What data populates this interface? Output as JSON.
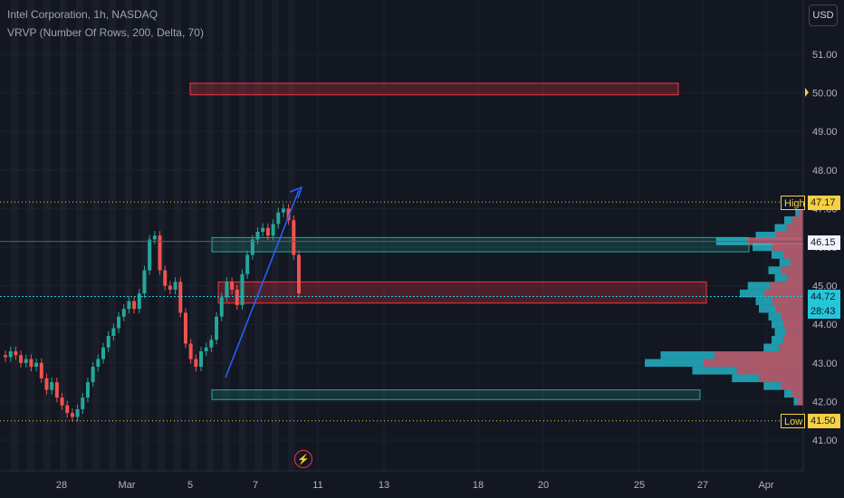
{
  "header": {
    "symbol_line": "Intel Corporation, 1h, NASDAQ",
    "indicator_line": "VRVP (Number Of Rows, 200, Delta, 70)"
  },
  "toolbar": {
    "currency_label": "USD"
  },
  "colors": {
    "background": "#131722",
    "up": "#26a69a",
    "down": "#ef5350",
    "zone_red": "#f23645",
    "zone_green": "#22ab94",
    "trend_line": "#2962ff",
    "high_low_label": "#f5d142",
    "current_price_tag": "#26c6da"
  },
  "chart_data": {
    "type": "candlestick",
    "title": "Intel Corporation, 1h, NASDAQ",
    "ylim": [
      40.6,
      51.85
    ],
    "x_tick_labels": [
      "28",
      "Mar",
      "5",
      "7",
      "11",
      "13",
      "18",
      "20",
      "25",
      "27",
      "Apr"
    ],
    "y_tick_labels": [
      "51.00",
      "50.00",
      "49.00",
      "48.00",
      "47.00",
      "46.00",
      "45.00",
      "44.00",
      "43.00",
      "42.00",
      "41.00"
    ],
    "markers": {
      "high": {
        "label": "High",
        "value": "47.17"
      },
      "low": {
        "label": "Low",
        "value": "41.50"
      },
      "line_46_15": "46.15",
      "current_price": "44.72",
      "countdown": "28:43",
      "alert_level": "50.00"
    },
    "close_path": [
      43.15,
      43.3,
      43.2,
      43.0,
      43.1,
      42.9,
      43.0,
      42.6,
      42.3,
      42.5,
      42.1,
      41.9,
      41.7,
      41.6,
      41.8,
      42.1,
      42.5,
      42.9,
      43.1,
      43.4,
      43.7,
      43.9,
      44.2,
      44.4,
      44.6,
      44.4,
      44.8,
      45.4,
      46.2,
      46.3,
      45.4,
      45.0,
      44.9,
      45.1,
      44.3,
      43.5,
      43.1,
      42.9,
      43.3,
      43.4,
      43.6,
      44.2,
      44.7,
      45.1,
      44.9,
      44.5,
      45.3,
      45.8,
      46.2,
      46.4,
      46.5,
      46.3,
      46.6,
      46.9,
      47.0,
      46.7,
      45.8,
      44.8
    ]
  },
  "zones": [
    {
      "type": "resistance",
      "from": 50.25,
      "to": 49.95
    },
    {
      "type": "support",
      "from": 46.25,
      "to": 45.88
    },
    {
      "type": "resistance",
      "from": 45.1,
      "to": 44.55
    },
    {
      "type": "support",
      "from": 42.3,
      "to": 42.05
    }
  ],
  "volume_profile": {
    "levels": [
      46.9,
      46.7,
      46.5,
      46.3,
      46.15,
      46.0,
      45.8,
      45.6,
      45.4,
      45.2,
      45.0,
      44.8,
      44.6,
      44.4,
      44.2,
      44.0,
      43.8,
      43.6,
      43.4,
      43.2,
      43.0,
      42.8,
      42.6,
      42.4,
      42.2,
      42.0
    ],
    "buy_share": [
      0.05,
      0.12,
      0.18,
      0.3,
      0.55,
      0.32,
      0.2,
      0.15,
      0.22,
      0.18,
      0.35,
      0.4,
      0.3,
      0.28,
      0.22,
      0.2,
      0.18,
      0.2,
      0.25,
      0.9,
      1.0,
      0.7,
      0.45,
      0.25,
      0.12,
      0.06
    ],
    "sell_share": [
      0.04,
      0.1,
      0.15,
      0.25,
      0.5,
      0.28,
      0.18,
      0.12,
      0.2,
      0.15,
      0.3,
      0.35,
      0.28,
      0.25,
      0.2,
      0.18,
      0.16,
      0.18,
      0.22,
      0.8,
      0.9,
      0.6,
      0.4,
      0.2,
      0.1,
      0.05
    ]
  }
}
